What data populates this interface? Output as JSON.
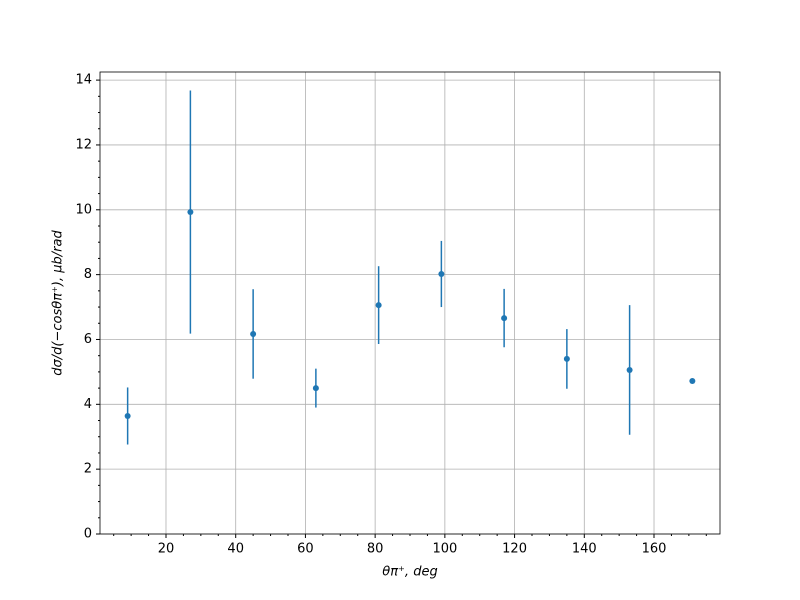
{
  "chart_data": {
    "type": "errorbar",
    "xlabel": "θπ⁺, deg",
    "ylabel": "dσ/d(−cosθπ⁺), μb/rad",
    "x": [
      9,
      27,
      45,
      63,
      81,
      99,
      117,
      135,
      153,
      171
    ],
    "series": [
      {
        "color": "#1f77b4",
        "values": [
          3.64,
          9.93,
          6.17,
          4.5,
          7.06,
          8.02,
          6.66,
          5.4,
          5.06,
          4.72
        ],
        "errors": [
          0.88,
          3.75,
          1.38,
          0.6,
          1.2,
          1.02,
          0.9,
          0.92,
          2.0,
          0
        ]
      }
    ],
    "xlim": [
      1.07,
      178.93
    ],
    "ylim": [
      0,
      14.25
    ],
    "xticks": [
      20,
      40,
      60,
      80,
      100,
      120,
      140,
      160
    ],
    "yticks": [
      0,
      2,
      4,
      6,
      8,
      10,
      12,
      14
    ],
    "xminorticks": [
      5,
      10,
      15,
      25,
      30,
      35,
      45,
      50,
      55,
      65,
      70,
      75,
      85,
      90,
      95,
      105,
      110,
      115,
      125,
      130,
      135,
      145,
      150,
      155,
      165,
      170,
      175
    ],
    "yminorticks": [
      0.5,
      1,
      1.5,
      2.5,
      3,
      3.5,
      4.5,
      5,
      5.5,
      6.5,
      7,
      7.5,
      8.5,
      9,
      9.5,
      10.5,
      11,
      11.5,
      12.5,
      13,
      13.5
    ],
    "grid": true
  }
}
